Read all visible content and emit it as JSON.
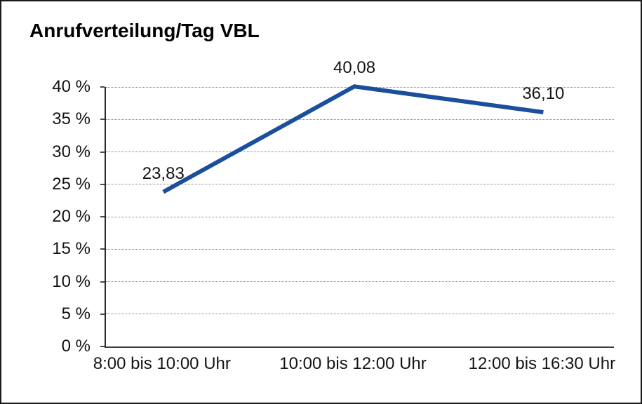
{
  "window": {
    "background": "#ffffff",
    "border_color": "#1a1a1a"
  },
  "chart_data": {
    "type": "line",
    "title": "Anrufverteilung/Tag VBL",
    "categories": [
      "8:00 bis 10:00 Uhr",
      "10:00 bis 12:00 Uhr",
      "12:00 bis 16:30 Uhr"
    ],
    "values": [
      23.83,
      40.08,
      36.1
    ],
    "value_labels": [
      "23,83",
      "40,08",
      "36,10"
    ],
    "xlabel": "",
    "ylabel": "",
    "ylim": [
      0,
      40
    ],
    "ytick_values": [
      0,
      5,
      10,
      15,
      20,
      25,
      30,
      35,
      40
    ],
    "ytick_labels": [
      "0 %",
      "5 %",
      "10 %",
      "15 %",
      "20 %",
      "25 %",
      "30 %",
      "35 %",
      "40 %"
    ],
    "grid": "horizontal-dotted",
    "legend": "none",
    "markers": "none",
    "line_color": "#1b4f9e",
    "text_color": "#141414",
    "gridline_color": "#828282"
  }
}
